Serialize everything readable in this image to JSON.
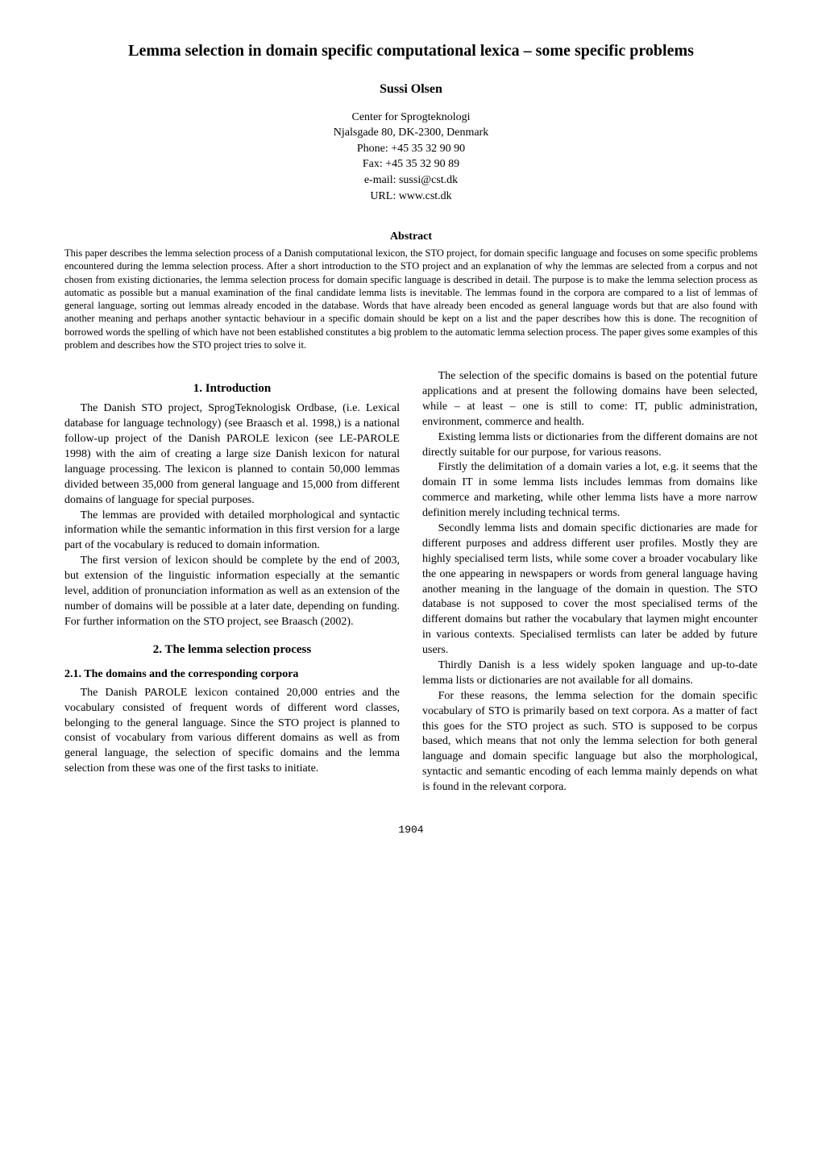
{
  "title": "Lemma selection in domain specific computational lexica – some specific problems",
  "author": "Sussi Olsen",
  "affiliation": {
    "line1": "Center for Sprogteknologi",
    "line2": "Njalsgade 80, DK-2300, Denmark",
    "line3": "Phone: +45 35 32 90 90",
    "line4": "Fax: +45 35 32 90 89",
    "line5": "e-mail: sussi@cst.dk",
    "line6": "URL: www.cst.dk"
  },
  "abstract": {
    "heading": "Abstract",
    "text": "This paper describes the lemma selection process of a Danish computational lexicon, the STO project, for domain specific language and focuses on some specific problems encountered during the lemma selection process. After a short introduction to the STO project and an explanation of why the lemmas are selected from a corpus and not chosen from existing dictionaries, the lemma selection process for domain specific language is described in detail. The purpose is to make the lemma selection process as automatic as possible but a manual examination of the final candidate lemma lists is inevitable. The lemmas found in the corpora are compared to a list of lemmas of general language, sorting out lemmas already encoded in the database. Words that have already been encoded as general language words but that are also found with another meaning and perhaps another syntactic behaviour in a specific domain should be kept on a list and the paper describes how this is done. The recognition of borrowed words the spelling of which have not been established constitutes a big problem to the automatic lemma selection process. The paper gives some examples of this problem and describes how the STO project tries to solve it."
  },
  "left_column": {
    "section1": {
      "heading": "1.   Introduction",
      "p1": "The Danish STO project, SprogTeknologisk Ordbase, (i.e. Lexical database for language technology) (see Braasch et al. 1998,) is a national follow-up project of the Danish PAROLE lexicon (see LE-PAROLE 1998) with the aim of creating a large size Danish lexicon for natural language processing. The lexicon is planned to contain 50,000 lemmas divided between 35,000 from general language and 15,000 from different domains of language for special purposes.",
      "p2": "The lemmas are provided with detailed morphological and syntactic information while the semantic information in this first version for a large part of the vocabulary is reduced to domain information.",
      "p3": "The first version of lexicon should be complete by the end of 2003, but extension of the linguistic information especially at the semantic level, addition of pronunciation information as well as an extension of the number of domains will be possible at a later date, depending on funding. For further information on the STO project, see Braasch (2002)."
    },
    "section2": {
      "heading": "2.   The lemma selection process",
      "sub21": {
        "heading": "2.1.   The domains and the corresponding corpora",
        "p1": "The Danish PAROLE lexicon contained 20,000 entries and the vocabulary consisted of frequent words of different word classes, belonging to the general language. Since the STO project is planned to consist of vocabulary from various different domains as well as from general language, the selection of specific domains and the lemma selection from these was one of the first tasks to initiate."
      }
    }
  },
  "right_column": {
    "p1": "The selection of the specific domains is based on the potential future applications and at present the following domains have been selected, while – at least – one is still to come: IT, public administration, environment, commerce and health.",
    "p2": "Existing lemma lists or dictionaries from the different domains are not directly suitable for our purpose, for various reasons.",
    "p3": "Firstly the delimitation of a domain varies a lot, e.g. it seems that the domain IT in some lemma lists includes lemmas from domains like commerce and marketing, while other lemma lists have a more narrow definition merely including technical terms.",
    "p4": "Secondly lemma lists and domain specific dictionaries are made for different purposes and address different user profiles. Mostly they are highly specialised term lists, while some cover a broader vocabulary like the one appearing in newspapers or words from general language having another meaning in the language of the domain in question. The STO database is not supposed to cover the most specialised terms of the different domains but rather the vocabulary that laymen might encounter in various contexts. Specialised termlists can later be added by future users.",
    "p5": "Thirdly Danish is a less widely spoken language and up-to-date lemma lists or dictionaries are not available for all domains.",
    "p6": "For these reasons, the lemma selection for the domain specific vocabulary of STO is primarily based on text corpora. As a matter of fact this goes for the STO project as such. STO is supposed to be corpus based, which means that not only the lemma selection for both general language and domain specific language but also the morphological, syntactic and semantic encoding of each lemma mainly depends on what is found in the relevant corpora."
  },
  "page_number": "1904"
}
